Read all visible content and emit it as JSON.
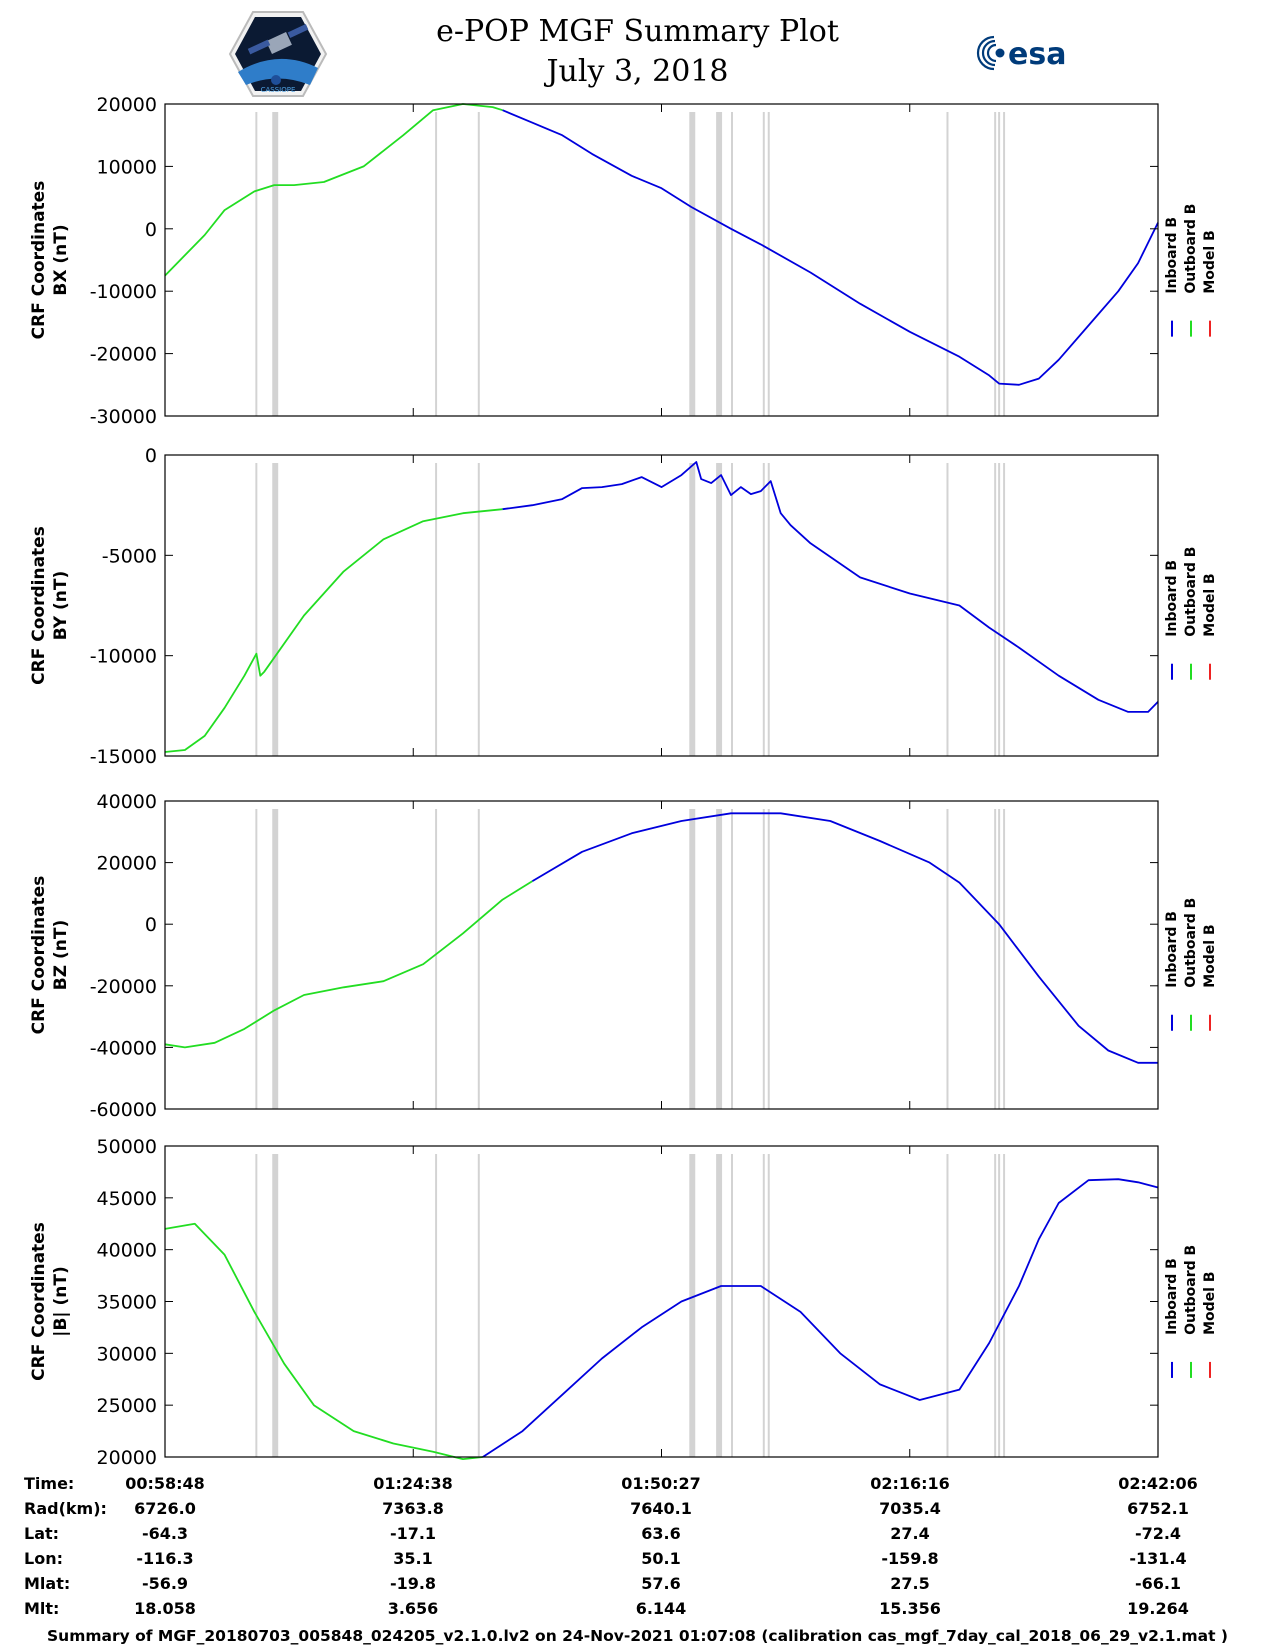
{
  "header": {
    "title_line1": "e-POP MGF Summary Plot",
    "title_line2": "July 3, 2018",
    "logo_left_text": "CASSIOPE",
    "logo_right_text": "esa"
  },
  "colors": {
    "inboard": "#0000dd",
    "outboard": "#22dd22",
    "model": "#ee2222",
    "gap_band": "#d3d3d3"
  },
  "legend": [
    "Inboard B",
    "Outboard B",
    "Model B"
  ],
  "chart_data": [
    {
      "type": "line",
      "ylabel_line1": "CRF Coordinates",
      "ylabel_line2": "BX (nT)",
      "ylim": [
        -30000,
        20000
      ],
      "yticks": [
        20000,
        10000,
        0,
        -10000,
        -20000,
        -30000
      ],
      "series": [
        {
          "name": "Outboard B",
          "x": [
            0,
            0.04,
            0.06,
            0.09,
            0.11,
            0.13,
            0.16,
            0.2,
            0.24,
            0.27,
            0.3,
            0.33,
            0.34
          ],
          "y": [
            -7500,
            -1000,
            3000,
            6000,
            7000,
            7000,
            7500,
            10000,
            15000,
            19000,
            20000,
            19500,
            19000
          ]
        },
        {
          "name": "Inboard B",
          "x": [
            0.34,
            0.37,
            0.4,
            0.43,
            0.47,
            0.5,
            0.53,
            0.57,
            0.6,
            0.65,
            0.7,
            0.75,
            0.8,
            0.83,
            0.84,
            0.86,
            0.88,
            0.9,
            0.93,
            0.96,
            0.98,
            1.0
          ],
          "y": [
            19000,
            17000,
            15000,
            12000,
            8500,
            6500,
            3500,
            0,
            -2500,
            -7000,
            -12000,
            -16500,
            -20500,
            -23500,
            -24800,
            -25000,
            -24000,
            -21000,
            -15500,
            -10000,
            -5500,
            1000
          ]
        }
      ]
    },
    {
      "type": "line",
      "ylabel_line1": "CRF Coordinates",
      "ylabel_line2": "BY (nT)",
      "ylim": [
        -15000,
        0
      ],
      "yticks": [
        0,
        -5000,
        -10000,
        -15000
      ],
      "series": [
        {
          "name": "Outboard B",
          "x": [
            0,
            0.02,
            0.04,
            0.06,
            0.08,
            0.092,
            0.096,
            0.1,
            0.14,
            0.18,
            0.22,
            0.26,
            0.3,
            0.34
          ],
          "y": [
            -14800,
            -14700,
            -14000,
            -12600,
            -11000,
            -9900,
            -11000,
            -10800,
            -8000,
            -5800,
            -4200,
            -3300,
            -2900,
            -2700
          ]
        },
        {
          "name": "Inboard B",
          "x": [
            0.34,
            0.37,
            0.4,
            0.42,
            0.44,
            0.46,
            0.48,
            0.5,
            0.52,
            0.535,
            0.54,
            0.55,
            0.56,
            0.57,
            0.58,
            0.59,
            0.6,
            0.61,
            0.62,
            0.63,
            0.65,
            0.7,
            0.75,
            0.8,
            0.83,
            0.86,
            0.9,
            0.94,
            0.97,
            0.99,
            1.0
          ],
          "y": [
            -2700,
            -2500,
            -2200,
            -1650,
            -1600,
            -1450,
            -1100,
            -1600,
            -1000,
            -350,
            -1200,
            -1400,
            -1000,
            -2000,
            -1600,
            -1950,
            -1800,
            -1300,
            -2900,
            -3500,
            -4400,
            -6100,
            -6900,
            -7500,
            -8600,
            -9600,
            -11000,
            -12200,
            -12800,
            -12800,
            -12300
          ]
        }
      ]
    },
    {
      "type": "line",
      "ylabel_line1": "CRF Coordinates",
      "ylabel_line2": "BZ (nT)",
      "ylim": [
        -60000,
        40000
      ],
      "yticks": [
        40000,
        20000,
        0,
        -20000,
        -40000,
        -60000
      ],
      "series": [
        {
          "name": "Outboard B",
          "x": [
            0,
            0.02,
            0.05,
            0.08,
            0.11,
            0.14,
            0.18,
            0.22,
            0.26,
            0.3,
            0.34,
            0.37
          ],
          "y": [
            -39000,
            -40000,
            -38500,
            -34000,
            -28000,
            -23000,
            -20500,
            -18500,
            -13000,
            -3000,
            8000,
            14000
          ]
        },
        {
          "name": "Inboard B",
          "x": [
            0.37,
            0.42,
            0.47,
            0.52,
            0.57,
            0.62,
            0.67,
            0.72,
            0.77,
            0.8,
            0.84,
            0.88,
            0.92,
            0.95,
            0.98,
            1.0
          ],
          "y": [
            14000,
            23500,
            29500,
            33500,
            36000,
            36000,
            33500,
            27000,
            20000,
            13500,
            0,
            -17000,
            -33000,
            -41000,
            -45000,
            -45000
          ]
        }
      ]
    },
    {
      "type": "line",
      "ylabel_line1": "CRF Coordinates",
      "ylabel_line2": "|B| (nT)",
      "ylim": [
        20000,
        50000
      ],
      "yticks": [
        50000,
        45000,
        40000,
        35000,
        30000,
        25000,
        20000
      ],
      "series": [
        {
          "name": "Outboard B",
          "x": [
            0,
            0.03,
            0.06,
            0.09,
            0.12,
            0.15,
            0.19,
            0.23,
            0.27,
            0.3,
            0.32
          ],
          "y": [
            42000,
            42500,
            39500,
            34000,
            29000,
            25000,
            22500,
            21300,
            20500,
            19800,
            20000
          ]
        },
        {
          "name": "Inboard B",
          "x": [
            0.32,
            0.36,
            0.4,
            0.44,
            0.48,
            0.52,
            0.56,
            0.6,
            0.64,
            0.68,
            0.72,
            0.76,
            0.8,
            0.83,
            0.86,
            0.88,
            0.9,
            0.93,
            0.96,
            0.98,
            1.0
          ],
          "y": [
            20000,
            22500,
            26000,
            29500,
            32500,
            35000,
            36500,
            36500,
            34000,
            30000,
            27000,
            25500,
            26500,
            31000,
            36500,
            41000,
            44500,
            46700,
            46800,
            46500,
            46000
          ]
        }
      ]
    }
  ],
  "gap_bands": [
    {
      "start": 0.091,
      "end": 0.093
    },
    {
      "start": 0.108,
      "end": 0.114
    },
    {
      "start": 0.272,
      "end": 0.274
    },
    {
      "start": 0.315,
      "end": 0.317
    },
    {
      "start": 0.528,
      "end": 0.534
    },
    {
      "start": 0.555,
      "end": 0.561
    },
    {
      "start": 0.57,
      "end": 0.572
    },
    {
      "start": 0.602,
      "end": 0.604
    },
    {
      "start": 0.607,
      "end": 0.609
    },
    {
      "start": 0.787,
      "end": 0.789
    },
    {
      "start": 0.835,
      "end": 0.837
    },
    {
      "start": 0.839,
      "end": 0.841
    },
    {
      "start": 0.844,
      "end": 0.846
    }
  ],
  "info_rows": [
    {
      "label": "Time:",
      "values": [
        "00:58:48",
        "01:24:38",
        "01:50:27",
        "02:16:16",
        "02:42:06"
      ]
    },
    {
      "label": "Rad(km):",
      "values": [
        "6726.0",
        "7363.8",
        "7640.1",
        "7035.4",
        "6752.1"
      ]
    },
    {
      "label": "Lat:",
      "values": [
        "-64.3",
        "-17.1",
        "63.6",
        "27.4",
        "-72.4"
      ]
    },
    {
      "label": "Lon:",
      "values": [
        "-116.3",
        "35.1",
        "50.1",
        "-159.8",
        "-131.4"
      ]
    },
    {
      "label": "Mlat:",
      "values": [
        "-56.9",
        "-19.8",
        "57.6",
        "27.5",
        "-66.1"
      ]
    },
    {
      "label": "Mlt:",
      "values": [
        "18.058",
        "3.656",
        "6.144",
        "15.356",
        "19.264"
      ]
    }
  ],
  "footer": "Summary of MGF_20180703_005848_024205_v2.1.0.lv2 on 24-Nov-2021 01:07:08 (calibration cas_mgf_7day_cal_2018_06_29_v2.1.mat )"
}
